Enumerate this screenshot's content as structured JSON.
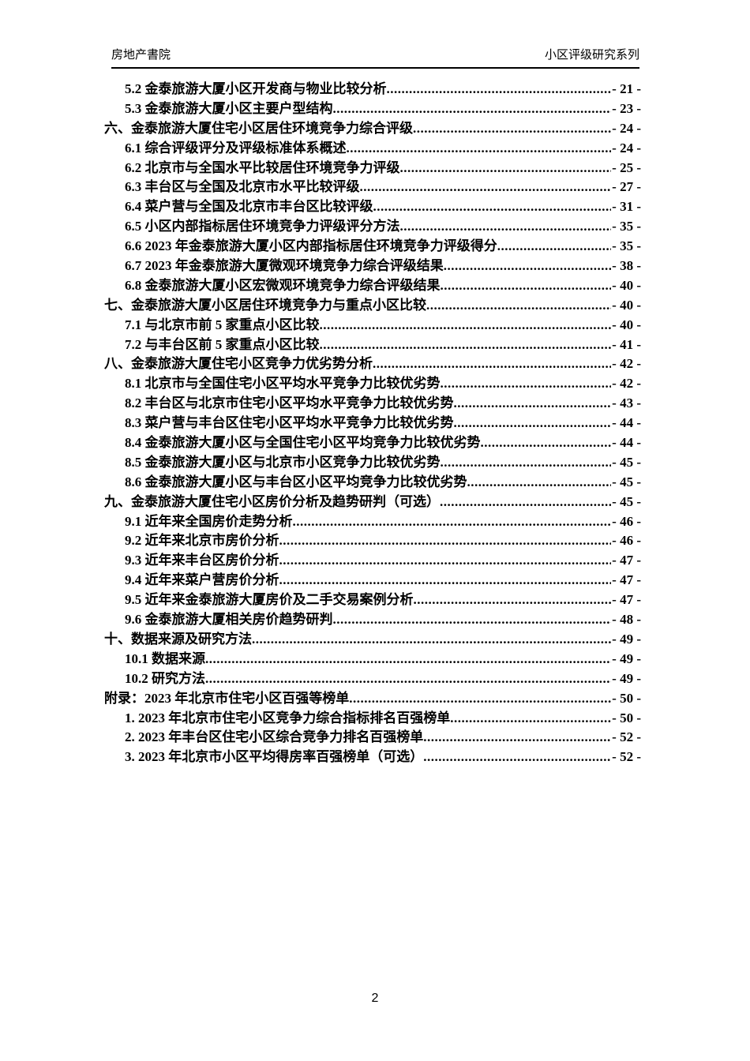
{
  "header": {
    "left": "房地产書院",
    "right": "小区评级研究系列"
  },
  "toc": {
    "entries": [
      {
        "level": 2,
        "label": "5.2 金泰旅游大厦小区开发商与物业比较分析",
        "page": "- 21 -"
      },
      {
        "level": 2,
        "label": "5.3 金泰旅游大厦小区主要户型结构",
        "page": "- 23 -"
      },
      {
        "level": 1,
        "label": "六、金泰旅游大厦住宅小区居住环境竞争力综合评级",
        "page": "- 24 -"
      },
      {
        "level": 2,
        "label": "6.1 综合评级评分及评级标准体系概述",
        "page": "- 24 -"
      },
      {
        "level": 2,
        "label": "6.2 北京市与全国水平比较居住环境竞争力评级",
        "page": "- 25 -"
      },
      {
        "level": 2,
        "label": "6.3 丰台区与全国及北京市水平比较评级",
        "page": "- 27 -"
      },
      {
        "level": 2,
        "label": "6.4 菜户营与全国及北京市丰台区比较评级",
        "page": "- 31 -"
      },
      {
        "level": 2,
        "label": "6.5 小区内部指标居住环境竞争力评级评分方法",
        "page": "- 35 -"
      },
      {
        "level": 2,
        "label": "6.6 2023 年金泰旅游大厦小区内部指标居住环境竞争力评级得分",
        "page": "- 35 -"
      },
      {
        "level": 2,
        "label": "6.7 2023 年金泰旅游大厦微观环境竞争力综合评级结果",
        "page": "- 38 -"
      },
      {
        "level": 2,
        "label": "6.8 金泰旅游大厦小区宏微观环境竞争力综合评级结果",
        "page": "- 40 -"
      },
      {
        "level": 1,
        "label": "七、金泰旅游大厦小区居住环境竞争力与重点小区比较",
        "page": "- 40 -"
      },
      {
        "level": 2,
        "label": "7.1 与北京市前 5 家重点小区比较",
        "page": "- 40 -"
      },
      {
        "level": 2,
        "label": "7.2 与丰台区前 5 家重点小区比较",
        "page": "- 41 -"
      },
      {
        "level": 1,
        "label": "八、金泰旅游大厦住宅小区竞争力优劣势分析",
        "page": "- 42 -"
      },
      {
        "level": 2,
        "label": "8.1 北京市与全国住宅小区平均水平竞争力比较优劣势",
        "page": "- 42 -"
      },
      {
        "level": 2,
        "label": "8.2 丰台区与北京市住宅小区平均水平竞争力比较优劣势",
        "page": "- 43 -"
      },
      {
        "level": 2,
        "label": "8.3 菜户营与丰台区住宅小区平均水平竞争力比较优劣势",
        "page": "- 44 -"
      },
      {
        "level": 2,
        "label": "8.4 金泰旅游大厦小区与全国住宅小区平均竞争力比较优劣势",
        "page": "- 44 -"
      },
      {
        "level": 2,
        "label": "8.5 金泰旅游大厦小区与北京市小区竞争力比较优劣势",
        "page": "- 45 -"
      },
      {
        "level": 2,
        "label": "8.6 金泰旅游大厦小区与丰台区小区平均竞争力比较优劣势",
        "page": "- 45 -"
      },
      {
        "level": 1,
        "label": "九、金泰旅游大厦住宅小区房价分析及趋势研判（可选）",
        "page": "- 45 -"
      },
      {
        "level": 2,
        "label": "9.1 近年来全国房价走势分析",
        "page": "- 46 -"
      },
      {
        "level": 2,
        "label": "9.2 近年来北京市房价分析",
        "page": "- 46 -"
      },
      {
        "level": 2,
        "label": "9.3 近年来丰台区房价分析",
        "page": "- 47 -"
      },
      {
        "level": 2,
        "label": "9.4 近年来菜户营房价分析",
        "page": "- 47 -"
      },
      {
        "level": 2,
        "label": "9.5 近年来金泰旅游大厦房价及二手交易案例分析",
        "page": "- 47 -"
      },
      {
        "level": 2,
        "label": "9.6 金泰旅游大厦相关房价趋势研判",
        "page": "- 48 -"
      },
      {
        "level": 1,
        "label": "十、数据来源及研究方法",
        "page": "- 49 -"
      },
      {
        "level": 2,
        "label": "10.1 数据来源",
        "page": "- 49 -"
      },
      {
        "level": 2,
        "label": "10.2 研究方法",
        "page": "- 49 -"
      },
      {
        "level": 1,
        "label": "附录：2023 年北京市住宅小区百强等榜单",
        "page": "- 50 -"
      },
      {
        "level": 2,
        "label": "1. 2023 年北京市住宅小区竞争力综合指标排名百强榜单",
        "page": "- 50 -"
      },
      {
        "level": 2,
        "label": "2. 2023 年丰台区住宅小区综合竞争力排名百强榜单",
        "page": "- 52 -"
      },
      {
        "level": 2,
        "label": "3. 2023 年北京市小区平均得房率百强榜单（可选）",
        "page": "- 52 -"
      }
    ]
  },
  "footer": {
    "page_number": "2"
  }
}
